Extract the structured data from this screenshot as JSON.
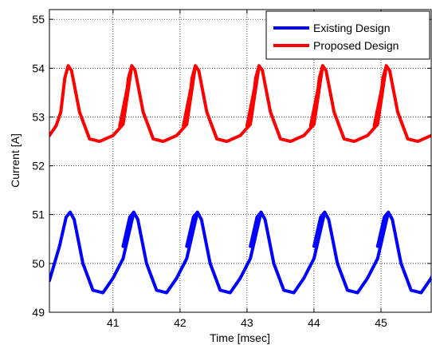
{
  "chart_data": {
    "type": "line",
    "title": "",
    "xlabel": "Time [msec]",
    "ylabel": "Current [A]",
    "xlim": [
      40.05,
      45.75
    ],
    "ylim": [
      49,
      55.2
    ],
    "xticks": [
      41,
      42,
      43,
      44,
      45
    ],
    "yticks": [
      49,
      50,
      51,
      52,
      53,
      54,
      55
    ],
    "grid": true,
    "legend_position": "top-right",
    "period_ms": 0.95,
    "series": [
      {
        "name": "Existing Design",
        "color": "#0000ff",
        "first_peak_x": 40.36,
        "peak": 51.05,
        "valley": 49.4,
        "x": [
          40.05,
          40.2,
          40.3,
          40.36,
          40.42,
          40.55,
          40.7,
          40.85,
          41.0,
          41.15,
          41.31
        ],
        "y": [
          49.65,
          50.35,
          50.95,
          51.05,
          50.9,
          50.0,
          49.45,
          49.4,
          49.7,
          50.1,
          51.05
        ]
      },
      {
        "name": "Proposed Design",
        "color": "#ff0000",
        "first_peak_x": 40.33,
        "peak": 54.05,
        "valley": 52.5,
        "x": [
          40.05,
          40.15,
          40.22,
          40.28,
          40.33,
          40.38,
          40.5,
          40.65,
          40.8,
          41.0,
          41.15,
          41.28
        ],
        "y": [
          52.62,
          52.82,
          53.1,
          53.8,
          54.05,
          53.95,
          53.1,
          52.55,
          52.5,
          52.62,
          52.85,
          54.05
        ]
      }
    ]
  }
}
